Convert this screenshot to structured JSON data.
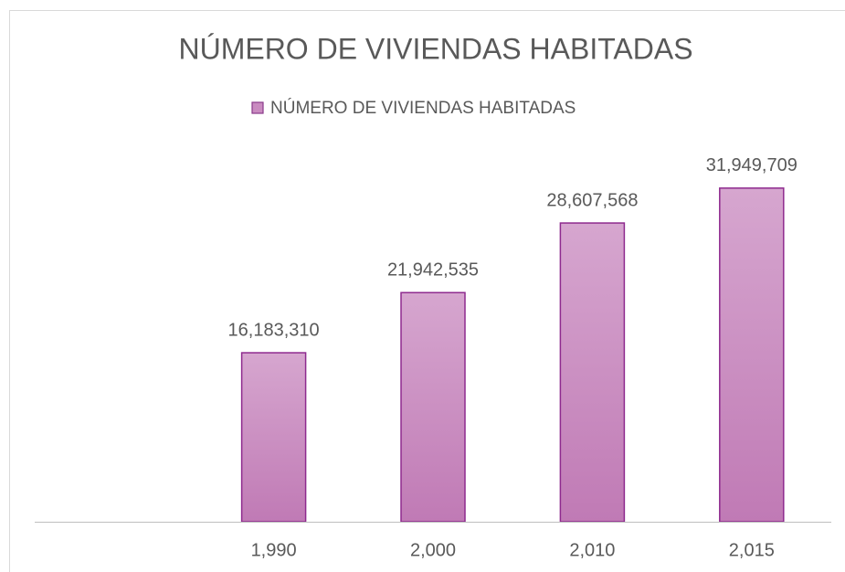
{
  "chart_data": {
    "type": "bar",
    "title": "NÚMERO DE VIVIENDAS HABITADAS",
    "categories": [
      null,
      "1,990",
      "2,000",
      "2,010",
      "2,015"
    ],
    "series": [
      {
        "name": "NÚMERO DE VIVIENDAS HABITADAS",
        "color": "#c98bc0",
        "values": [
          null,
          16183310,
          21942535,
          28607568,
          31949709
        ],
        "value_labels": [
          null,
          "16,183,310",
          "21,942,535",
          "28,607,568",
          "31,949,709"
        ]
      }
    ],
    "ylim": [
      0,
      35000000
    ],
    "legend": "top"
  }
}
